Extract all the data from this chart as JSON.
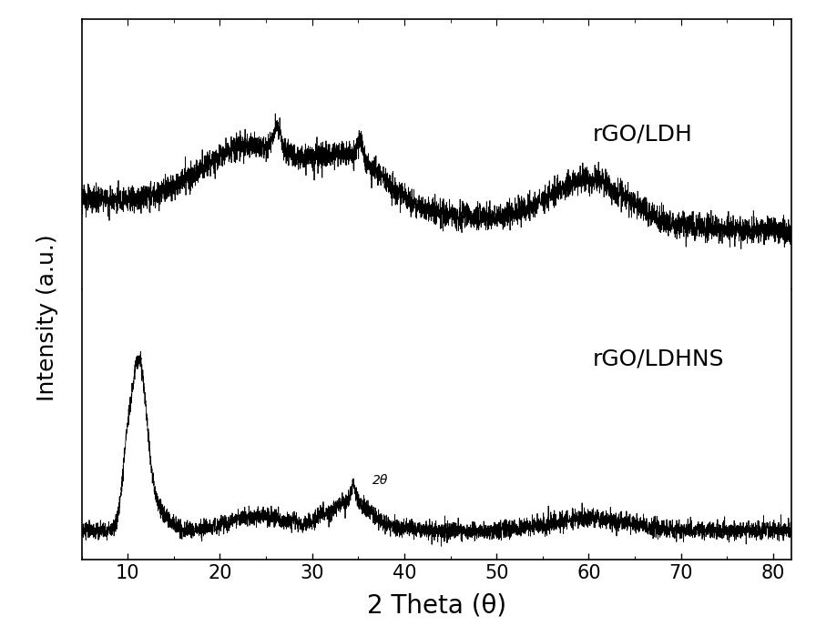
{
  "xlabel": "2 Theta (θ)",
  "ylabel": "Intensity (a.u.)",
  "xlim": [
    5,
    82
  ],
  "xticks": [
    10,
    20,
    30,
    40,
    50,
    60,
    70,
    80
  ],
  "label_top": "rGO/LDH",
  "label_bottom": "rGO/LDHNS",
  "label_bottom_annotation": "2θ",
  "line_color": "#000000",
  "background_color": "#ffffff",
  "label_fontsize": 18,
  "tick_fontsize": 15,
  "annotation_fontsize": 10
}
